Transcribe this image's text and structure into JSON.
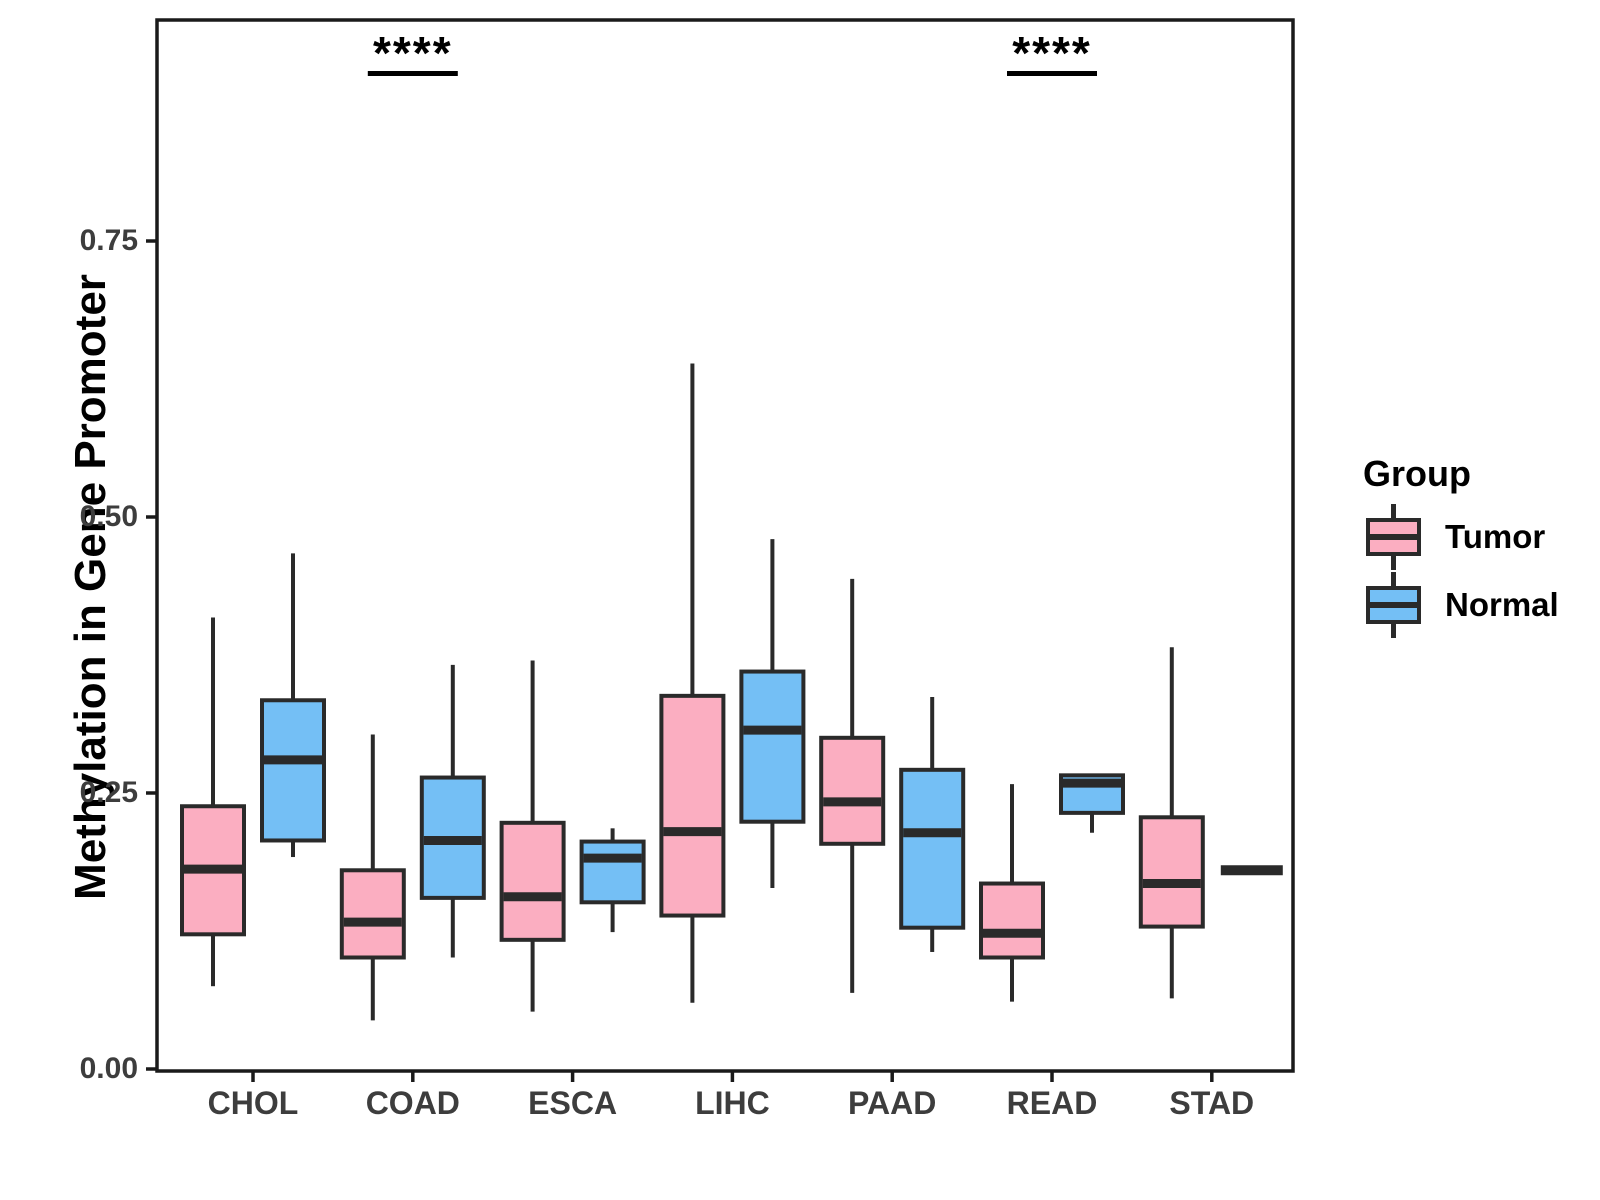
{
  "figure": {
    "background": "#FFFFFF"
  },
  "chart_data": {
    "type": "grouped_boxplot",
    "title": "",
    "xlabel": "",
    "ylabel": "Methylation in Gene Promoter",
    "categories": [
      "CHOL",
      "COAD",
      "ESCA",
      "LIHC",
      "PAAD",
      "READ",
      "STAD"
    ],
    "y_ticks": [
      {
        "label": "0.00",
        "value": 0.0
      },
      {
        "label": "0.25",
        "value": 0.25
      },
      {
        "label": "0.50",
        "value": 0.5
      },
      {
        "label": "0.75",
        "value": 0.75
      }
    ],
    "ylim": [
      0,
      0.95
    ],
    "grid": "off",
    "legend": {
      "title": "Group",
      "position": "right",
      "entries": [
        {
          "label": "Tumor",
          "color": "#FBAEC1"
        },
        {
          "label": "Normal",
          "color": "#74BFF5"
        }
      ]
    },
    "colors": {
      "tumor_fill": "#FBAEC1",
      "normal_fill": "#74BFF5",
      "box_border": "#2A2A2A",
      "panel_border": "#1A1A1A",
      "tick_text": "#3D3D3D",
      "annotation": "#000000"
    },
    "series": [
      {
        "name": "Tumor",
        "color": "#FBAEC1",
        "boxes": [
          {
            "category": "CHOL",
            "min": 0.075,
            "q1": 0.122,
            "median": 0.181,
            "q3": 0.238,
            "max": 0.409
          },
          {
            "category": "COAD",
            "min": 0.044,
            "q1": 0.101,
            "median": 0.133,
            "q3": 0.18,
            "max": 0.303
          },
          {
            "category": "ESCA",
            "min": 0.052,
            "q1": 0.117,
            "median": 0.156,
            "q3": 0.223,
            "max": 0.37
          },
          {
            "category": "LIHC",
            "min": 0.06,
            "q1": 0.139,
            "median": 0.215,
            "q3": 0.338,
            "max": 0.639
          },
          {
            "category": "PAAD",
            "min": 0.069,
            "q1": 0.204,
            "median": 0.242,
            "q3": 0.3,
            "max": 0.444
          },
          {
            "category": "READ",
            "min": 0.061,
            "q1": 0.101,
            "median": 0.123,
            "q3": 0.168,
            "max": 0.258
          },
          {
            "category": "STAD",
            "min": 0.064,
            "q1": 0.129,
            "median": 0.168,
            "q3": 0.228,
            "max": 0.382
          }
        ]
      },
      {
        "name": "Normal",
        "color": "#74BFF5",
        "boxes": [
          {
            "category": "CHOL",
            "min": 0.192,
            "q1": 0.207,
            "median": 0.28,
            "q3": 0.334,
            "max": 0.467
          },
          {
            "category": "COAD",
            "min": 0.101,
            "q1": 0.155,
            "median": 0.207,
            "q3": 0.264,
            "max": 0.366
          },
          {
            "category": "ESCA",
            "min": 0.124,
            "q1": 0.151,
            "median": 0.191,
            "q3": 0.206,
            "max": 0.218
          },
          {
            "category": "LIHC",
            "min": 0.164,
            "q1": 0.224,
            "median": 0.307,
            "q3": 0.36,
            "max": 0.48
          },
          {
            "category": "PAAD",
            "min": 0.106,
            "q1": 0.128,
            "median": 0.214,
            "q3": 0.271,
            "max": 0.337
          },
          {
            "category": "READ",
            "min": 0.214,
            "q1": 0.232,
            "median": 0.259,
            "q3": 0.266,
            "max": 0.266
          },
          {
            "category": "STAD",
            "min": 0.18,
            "q1": 0.18,
            "median": 0.18,
            "q3": 0.18,
            "max": 0.18,
            "flat": true
          }
        ]
      }
    ],
    "annotations": [
      {
        "category": "COAD",
        "text": "****",
        "significance_bar": true
      },
      {
        "category": "READ",
        "text": "****",
        "significance_bar": true
      }
    ]
  }
}
